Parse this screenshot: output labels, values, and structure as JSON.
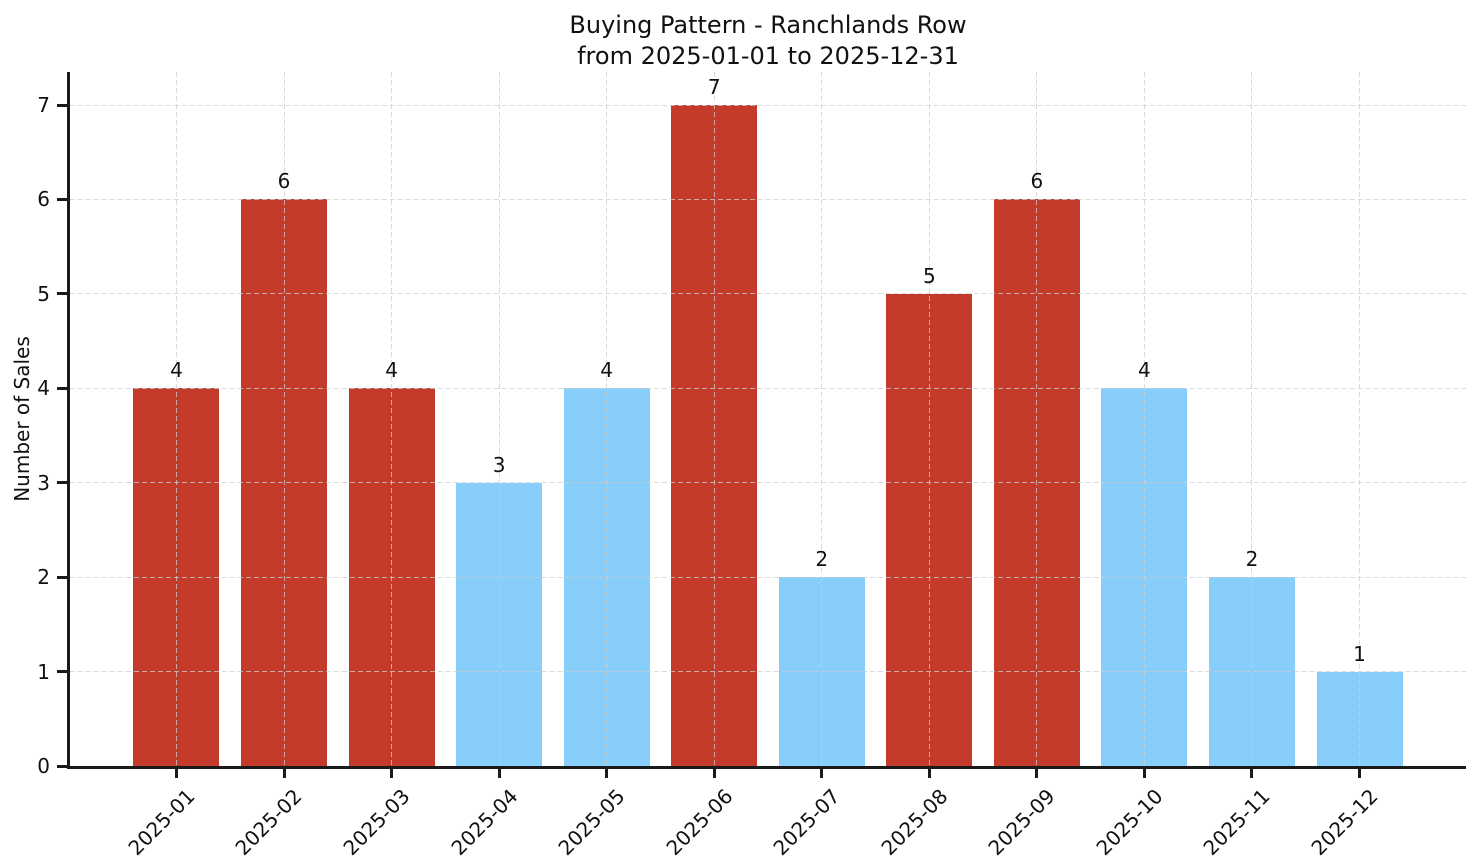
{
  "chart_data": {
    "type": "bar",
    "title_lines": [
      "Buying Pattern - Ranchlands Row",
      "from 2025-01-01 to 2025-12-31"
    ],
    "title": "Buying Pattern - Ranchlands Row\nfrom 2025-01-01 to 2025-12-31",
    "xlabel": "",
    "ylabel": "Number of Sales",
    "categories": [
      "2025-01",
      "2025-02",
      "2025-03",
      "2025-04",
      "2025-05",
      "2025-06",
      "2025-07",
      "2025-08",
      "2025-09",
      "2025-10",
      "2025-11",
      "2025-12"
    ],
    "values": [
      4,
      6,
      4,
      3,
      4,
      7,
      2,
      5,
      6,
      4,
      2,
      1
    ],
    "data_labels": [
      "4",
      "6",
      "4",
      "3",
      "4",
      "7",
      "2",
      "5",
      "6",
      "4",
      "2",
      "1"
    ],
    "bar_color_names": [
      "red",
      "red",
      "red",
      "blue",
      "blue",
      "red",
      "blue",
      "red",
      "red",
      "blue",
      "blue",
      "blue"
    ],
    "color_map": {
      "red": "#c43a2b",
      "blue": "#87cefa"
    },
    "yticks": [
      "0",
      "1",
      "2",
      "3",
      "4",
      "5",
      "6",
      "7"
    ],
    "ylim": [
      0,
      7.35
    ],
    "grid": true,
    "grid_line_style": "dashed",
    "x_tick_rotation_deg": 45,
    "legend": false
  }
}
